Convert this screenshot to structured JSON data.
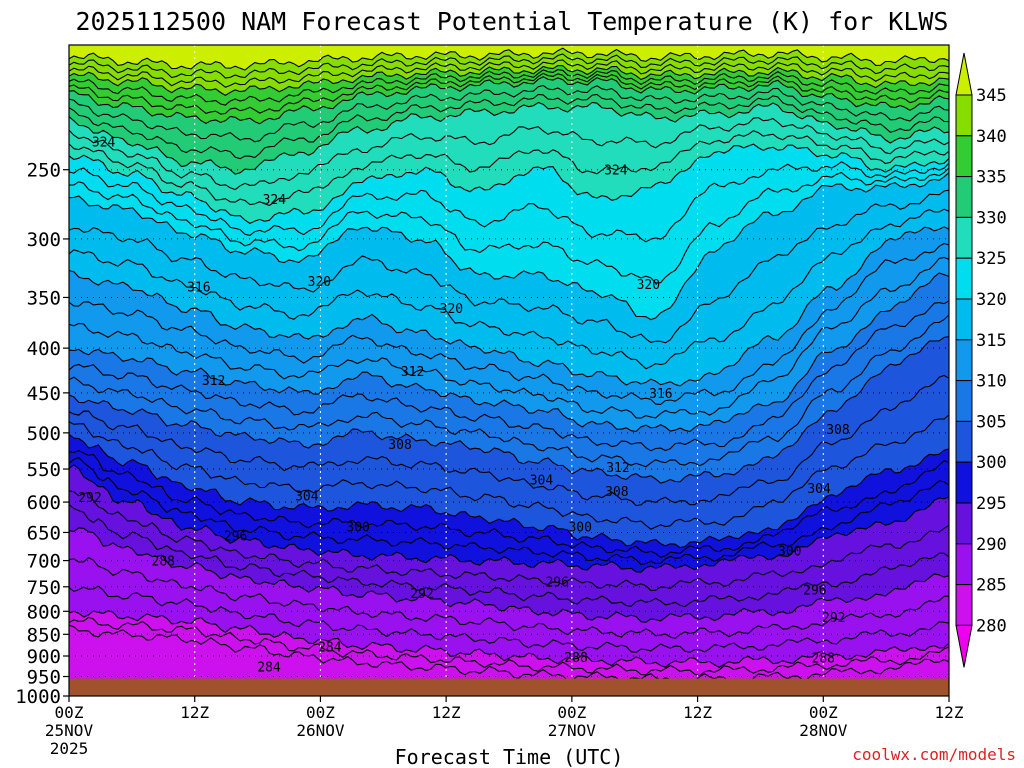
{
  "chart_data": {
    "type": "heatmap",
    "title": "2025112500 NAM Forecast Potential Temperature (K) for KLWS",
    "xlabel": "Forecast Time (UTC)",
    "ylabel": "",
    "credit": "coolwx.com/models",
    "x_range_hours": [
      0,
      84
    ],
    "y_range_hPa": [
      1000,
      180
    ],
    "x_ticks": [
      {
        "hour": 0,
        "label": "00Z",
        "sublabel": "25NOV",
        "sublabel2": "2025"
      },
      {
        "hour": 12,
        "label": "12Z"
      },
      {
        "hour": 24,
        "label": "00Z",
        "sublabel": "26NOV"
      },
      {
        "hour": 36,
        "label": "12Z"
      },
      {
        "hour": 48,
        "label": "00Z",
        "sublabel": "27NOV"
      },
      {
        "hour": 60,
        "label": "12Z"
      },
      {
        "hour": 72,
        "label": "00Z",
        "sublabel": "28NOV"
      },
      {
        "hour": 84,
        "label": "12Z"
      }
    ],
    "y_ticks": [
      "250",
      "300",
      "350",
      "400",
      "450",
      "500",
      "550",
      "600",
      "650",
      "700",
      "750",
      "800",
      "850",
      "900",
      "950",
      "1000"
    ],
    "y_tick_values": [
      250,
      300,
      350,
      400,
      450,
      500,
      550,
      600,
      650,
      700,
      750,
      800,
      850,
      900,
      950,
      1000
    ],
    "surface_pressure_hPa": 955,
    "colorbar": {
      "levels": [
        "345",
        "340",
        "335",
        "330",
        "325",
        "320",
        "315",
        "310",
        "305",
        "300",
        "295",
        "290",
        "285",
        "280"
      ],
      "colors": [
        "#ccee00",
        "#88dd00",
        "#33cc33",
        "#22cc77",
        "#22ddbb",
        "#00ddee",
        "#00bbee",
        "#1199ee",
        "#1a77e6",
        "#1d55dd",
        "#1111dd",
        "#6611dd",
        "#9911ee",
        "#cc11ee",
        "#ee00ee"
      ]
    },
    "band_order_K": [
      345,
      340,
      335,
      330,
      325,
      320,
      315,
      310,
      305,
      300,
      295,
      290,
      285,
      280
    ],
    "series": [
      {
        "name": "theta_345K",
        "pressure_hPa": [
          185,
          188,
          190,
          190,
          188,
          186,
          185,
          185,
          184,
          184,
          186,
          185,
          184,
          186,
          188,
          186
        ]
      },
      {
        "name": "theta_340K",
        "pressure_hPa": [
          195,
          198,
          202,
          203,
          200,
          196,
          194,
          193,
          192,
          192,
          195,
          194,
          193,
          196,
          200,
          197
        ]
      },
      {
        "name": "theta_335K",
        "pressure_hPa": [
          205,
          212,
          218,
          220,
          214,
          206,
          202,
          200,
          198,
          198,
          203,
          202,
          200,
          207,
          212,
          208
        ]
      },
      {
        "name": "theta_330K",
        "pressure_hPa": [
          220,
          232,
          245,
          250,
          238,
          225,
          218,
          215,
          212,
          212,
          218,
          216,
          212,
          222,
          230,
          225
        ]
      },
      {
        "name": "theta_325K",
        "pressure_hPa": [
          240,
          252,
          268,
          285,
          280,
          258,
          250,
          265,
          248,
          270,
          262,
          238,
          235,
          240,
          250,
          243
        ]
      },
      {
        "name": "theta_320K",
        "pressure_hPa": [
          270,
          278,
          295,
          310,
          318,
          290,
          300,
          330,
          330,
          345,
          370,
          310,
          280,
          262,
          262,
          255
        ]
      },
      {
        "name": "theta_315K",
        "pressure_hPa": [
          330,
          340,
          360,
          380,
          390,
          370,
          385,
          400,
          415,
          430,
          440,
          430,
          390,
          340,
          300,
          290
        ]
      },
      {
        "name": "theta_310K",
        "pressure_hPa": [
          400,
          410,
          425,
          440,
          450,
          430,
          445,
          460,
          470,
          490,
          495,
          490,
          460,
          400,
          360,
          330
        ]
      },
      {
        "name": "theta_305K",
        "pressure_hPa": [
          455,
          470,
          490,
          505,
          515,
          500,
          510,
          520,
          540,
          555,
          565,
          560,
          530,
          470,
          420,
          390
        ]
      },
      {
        "name": "theta_300K",
        "pressure_hPa": [
          505,
          540,
          575,
          600,
          610,
          605,
          610,
          625,
          640,
          660,
          670,
          665,
          640,
          590,
          555,
          520
        ]
      },
      {
        "name": "theta_295K",
        "pressure_hPa": [
          550,
          600,
          640,
          665,
          680,
          690,
          695,
          700,
          705,
          710,
          715,
          705,
          690,
          660,
          630,
          590
        ]
      },
      {
        "name": "theta_290K",
        "pressure_hPa": [
          640,
          680,
          710,
          735,
          750,
          765,
          775,
          785,
          800,
          810,
          815,
          810,
          800,
          780,
          760,
          730
        ]
      },
      {
        "name": "theta_285K",
        "pressure_hPa": [
          800,
          810,
          820,
          840,
          860,
          875,
          885,
          895,
          905,
          910,
          915,
          915,
          910,
          900,
          890,
          870
        ]
      }
    ],
    "series_x_hours": [
      0,
      5.6,
      11.2,
      16.8,
      22.4,
      28,
      33.6,
      39.2,
      44.8,
      50.4,
      56,
      61.6,
      67.2,
      72.8,
      78.4,
      84
    ],
    "contour_labels": [
      {
        "text": "324",
        "hour": 3.3,
        "p": 232
      },
      {
        "text": "324",
        "hour": 19.6,
        "p": 270
      },
      {
        "text": "324",
        "hour": 52.2,
        "p": 250
      },
      {
        "text": "320",
        "hour": 23.9,
        "p": 335
      },
      {
        "text": "320",
        "hour": 36.5,
        "p": 360
      },
      {
        "text": "320",
        "hour": 55.3,
        "p": 338
      },
      {
        "text": "316",
        "hour": 12.4,
        "p": 340
      },
      {
        "text": "316",
        "hour": 56.5,
        "p": 450
      },
      {
        "text": "312",
        "hour": 13.8,
        "p": 435
      },
      {
        "text": "312",
        "hour": 32.8,
        "p": 425
      },
      {
        "text": "312",
        "hour": 52.4,
        "p": 547
      },
      {
        "text": "308",
        "hour": 31.6,
        "p": 515
      },
      {
        "text": "308",
        "hour": 52.3,
        "p": 583
      },
      {
        "text": "308",
        "hour": 73.4,
        "p": 495
      },
      {
        "text": "304",
        "hour": 22.7,
        "p": 590
      },
      {
        "text": "304",
        "hour": 45.1,
        "p": 565
      },
      {
        "text": "304",
        "hour": 71.6,
        "p": 578
      },
      {
        "text": "300",
        "hour": 27.6,
        "p": 640
      },
      {
        "text": "300",
        "hour": 48.8,
        "p": 640
      },
      {
        "text": "300",
        "hour": 68.8,
        "p": 682
      },
      {
        "text": "296",
        "hour": 15.9,
        "p": 655
      },
      {
        "text": "296",
        "hour": 46.6,
        "p": 740
      },
      {
        "text": "296",
        "hour": 71.2,
        "p": 755
      },
      {
        "text": "292",
        "hour": 2.0,
        "p": 592
      },
      {
        "text": "292",
        "hour": 33.7,
        "p": 762
      },
      {
        "text": "292",
        "hour": 73.0,
        "p": 812
      },
      {
        "text": "288",
        "hour": 9.0,
        "p": 700
      },
      {
        "text": "288",
        "hour": 48.4,
        "p": 902
      },
      {
        "text": "288",
        "hour": 72.0,
        "p": 904
      },
      {
        "text": "284",
        "hour": 19.1,
        "p": 925
      },
      {
        "text": "284",
        "hour": 24.9,
        "p": 878
      }
    ]
  }
}
